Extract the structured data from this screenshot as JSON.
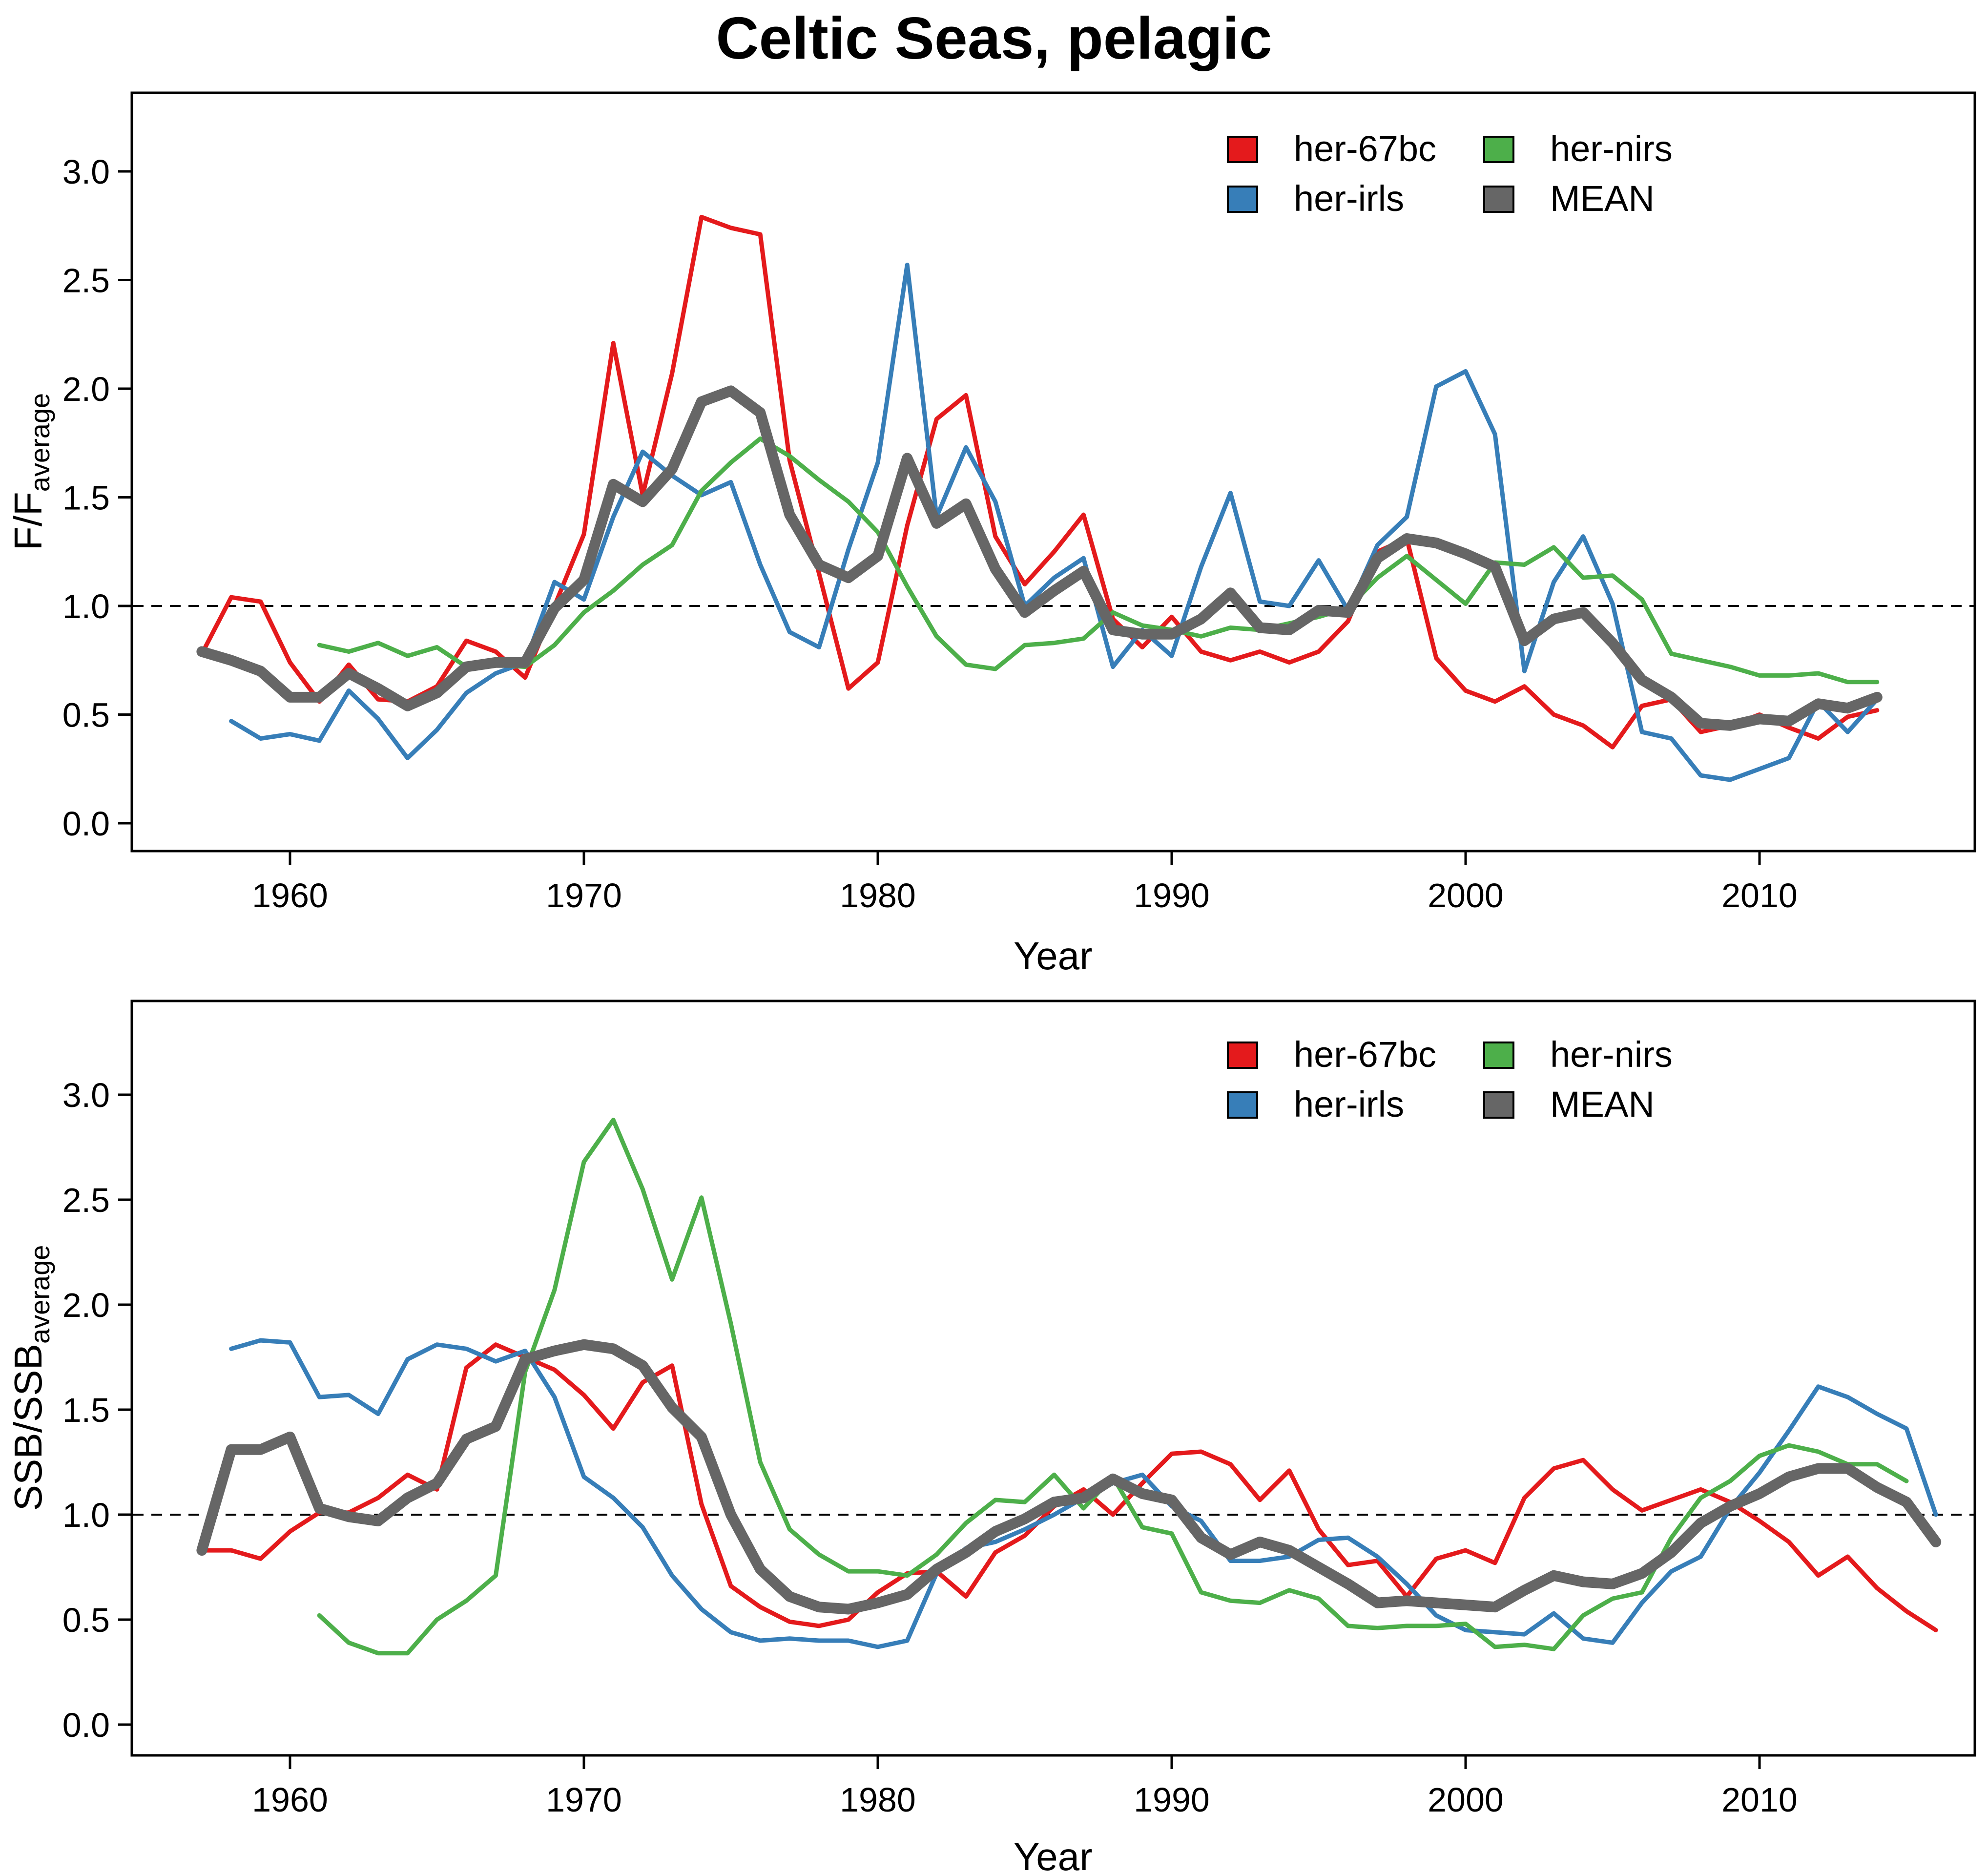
{
  "figure": {
    "title": "Celtic Seas, pelagic"
  },
  "colors": {
    "her-67bc": "#e41a1c",
    "her-irls": "#377eb8",
    "her-nirs": "#4daf4a",
    "MEAN": "#666666"
  },
  "chart_data": [
    {
      "type": "line",
      "panel": "top",
      "xlabel": "Year",
      "ylabel": {
        "main": "F/F",
        "subscript": "average"
      },
      "xlim": [
        1956,
        2016
      ],
      "ylim": [
        -0.12,
        3.3
      ],
      "xticks": [
        1960,
        1970,
        1980,
        1990,
        2000,
        2010
      ],
      "yticks": [
        "0.0",
        "0.5",
        "1.0",
        "1.5",
        "2.0",
        "2.5",
        "3.0"
      ],
      "reference_line": 1.0,
      "grid": false,
      "legend": {
        "position": "top-right",
        "entries": [
          "her-67bc",
          "her-nirs",
          "her-irls",
          "MEAN"
        ]
      },
      "series": [
        {
          "name": "her-67bc",
          "color": "#e41a1c",
          "x_start": 1957,
          "values": [
            0.78,
            1.04,
            1.02,
            0.74,
            0.56,
            0.73,
            0.57,
            0.56,
            0.63,
            0.84,
            0.79,
            0.67,
            1.0,
            1.33,
            2.21,
            1.51,
            2.07,
            2.79,
            2.74,
            2.71,
            1.67,
            1.15,
            0.62,
            0.74,
            1.37,
            1.86,
            1.97,
            1.32,
            1.1,
            1.25,
            1.42,
            0.94,
            0.81,
            0.95,
            0.79,
            0.75,
            0.79,
            0.74,
            0.79,
            0.93,
            1.25,
            1.31,
            0.76,
            0.61,
            0.56,
            0.63,
            0.5,
            0.45,
            0.35,
            0.54,
            0.57,
            0.42,
            0.45,
            0.5,
            0.44,
            0.39,
            0.49,
            0.52
          ]
        },
        {
          "name": "her-irls",
          "color": "#377eb8",
          "x_start": 1957,
          "values": [
            null,
            0.47,
            0.39,
            0.41,
            0.38,
            0.61,
            0.48,
            0.3,
            0.43,
            0.6,
            0.69,
            0.74,
            1.11,
            1.03,
            1.41,
            1.71,
            1.6,
            1.51,
            1.57,
            1.19,
            0.88,
            0.81,
            1.26,
            1.66,
            2.57,
            1.41,
            1.73,
            1.48,
            1.0,
            1.13,
            1.22,
            0.72,
            0.89,
            0.77,
            1.18,
            1.52,
            1.02,
            1.0,
            1.21,
            0.98,
            1.28,
            1.41,
            2.01,
            2.08,
            1.79,
            0.7,
            1.11,
            1.32,
            1.01,
            0.42,
            0.39,
            0.22,
            0.2,
            0.25,
            0.3,
            0.56,
            0.42,
            0.57
          ]
        },
        {
          "name": "her-nirs",
          "color": "#4daf4a",
          "x_start": 1957,
          "values": [
            null,
            null,
            null,
            null,
            0.82,
            0.79,
            0.83,
            0.77,
            0.81,
            0.72,
            0.73,
            0.72,
            0.82,
            0.97,
            1.07,
            1.19,
            1.28,
            1.53,
            1.66,
            1.77,
            1.69,
            1.58,
            1.48,
            1.34,
            1.09,
            0.86,
            0.73,
            0.71,
            0.82,
            0.83,
            0.85,
            0.97,
            0.91,
            0.89,
            0.86,
            0.9,
            0.89,
            0.92,
            0.95,
            0.99,
            1.13,
            1.23,
            1.12,
            1.01,
            1.2,
            1.19,
            1.27,
            1.13,
            1.14,
            1.03,
            0.78,
            0.75,
            0.72,
            0.68,
            0.68,
            0.69,
            0.65,
            0.65
          ]
        },
        {
          "name": "MEAN",
          "color": "#666666",
          "x_start": 1957,
          "values": [
            0.79,
            0.75,
            0.7,
            0.58,
            0.58,
            0.69,
            0.62,
            0.54,
            0.6,
            0.72,
            0.74,
            0.74,
            0.99,
            1.12,
            1.56,
            1.48,
            1.63,
            1.94,
            1.99,
            1.89,
            1.42,
            1.19,
            1.13,
            1.23,
            1.68,
            1.38,
            1.47,
            1.17,
            0.97,
            1.07,
            1.16,
            0.89,
            0.87,
            0.87,
            0.94,
            1.06,
            0.9,
            0.89,
            0.98,
            0.97,
            1.22,
            1.31,
            1.29,
            1.24,
            1.18,
            0.84,
            0.94,
            0.97,
            0.83,
            0.66,
            0.58,
            0.46,
            0.45,
            0.48,
            0.47,
            0.55,
            0.53,
            0.58
          ]
        }
      ]
    },
    {
      "type": "line",
      "panel": "bottom",
      "xlabel": "Year",
      "ylabel": {
        "main": "SSB/SSB",
        "subscript": "average"
      },
      "xlim": [
        1956,
        2016
      ],
      "ylim": [
        -0.12,
        3.3
      ],
      "xticks": [
        1960,
        1970,
        1980,
        1990,
        2000,
        2010
      ],
      "yticks": [
        "0.0",
        "0.5",
        "1.0",
        "1.5",
        "2.0",
        "2.5",
        "3.0"
      ],
      "reference_line": 1.0,
      "grid": false,
      "legend": {
        "position": "top-right",
        "entries": [
          "her-67bc",
          "her-nirs",
          "her-irls",
          "MEAN"
        ]
      },
      "series": [
        {
          "name": "her-67bc",
          "color": "#e41a1c",
          "x_start": 1957,
          "values": [
            0.83,
            0.83,
            0.79,
            0.92,
            1.01,
            1.01,
            1.08,
            1.19,
            1.12,
            1.7,
            1.81,
            1.75,
            1.69,
            1.57,
            1.41,
            1.63,
            1.71,
            1.05,
            0.66,
            0.56,
            0.49,
            0.47,
            0.5,
            0.63,
            0.72,
            0.73,
            0.61,
            0.82,
            0.9,
            1.04,
            1.12,
            1.0,
            1.15,
            1.29,
            1.3,
            1.24,
            1.07,
            1.21,
            0.93,
            0.76,
            0.78,
            0.61,
            0.79,
            0.83,
            0.77,
            1.08,
            1.22,
            1.26,
            1.12,
            1.02,
            1.07,
            1.12,
            1.06,
            0.97,
            0.87,
            0.71,
            0.8,
            0.65,
            0.54,
            0.45
          ]
        },
        {
          "name": "her-irls",
          "color": "#377eb8",
          "x_start": 1957,
          "values": [
            null,
            1.79,
            1.83,
            1.82,
            1.56,
            1.57,
            1.48,
            1.74,
            1.81,
            1.79,
            1.73,
            1.78,
            1.56,
            1.18,
            1.08,
            0.94,
            0.71,
            0.55,
            0.44,
            0.4,
            0.41,
            0.4,
            0.4,
            0.37,
            0.4,
            0.72,
            0.84,
            0.87,
            0.93,
            1.0,
            1.08,
            1.15,
            1.19,
            1.04,
            0.97,
            0.78,
            0.78,
            0.8,
            0.88,
            0.89,
            0.8,
            0.67,
            0.52,
            0.45,
            0.44,
            0.43,
            0.53,
            0.41,
            0.39,
            0.58,
            0.73,
            0.8,
            1.03,
            1.2,
            1.4,
            1.61,
            1.56,
            1.48,
            1.41,
            1.0
          ]
        },
        {
          "name": "her-nirs",
          "color": "#4daf4a",
          "x_start": 1957,
          "values": [
            null,
            null,
            null,
            null,
            0.52,
            0.39,
            0.34,
            0.34,
            0.5,
            0.59,
            0.71,
            1.68,
            2.07,
            2.68,
            2.88,
            2.55,
            2.12,
            2.51,
            1.91,
            1.25,
            0.93,
            0.81,
            0.73,
            0.73,
            0.71,
            0.81,
            0.96,
            1.07,
            1.06,
            1.19,
            1.03,
            1.18,
            0.94,
            0.91,
            0.63,
            0.59,
            0.58,
            0.64,
            0.6,
            0.47,
            0.46,
            0.47,
            0.47,
            0.48,
            0.37,
            0.38,
            0.36,
            0.52,
            0.6,
            0.63,
            0.89,
            1.08,
            1.16,
            1.28,
            1.33,
            1.3,
            1.24,
            1.24,
            1.16
          ]
        },
        {
          "name": "MEAN",
          "color": "#666666",
          "x_start": 1957,
          "values": [
            0.83,
            1.31,
            1.31,
            1.37,
            1.03,
            0.99,
            0.97,
            1.08,
            1.15,
            1.36,
            1.42,
            1.74,
            1.78,
            1.81,
            1.79,
            1.71,
            1.51,
            1.37,
            1.0,
            0.74,
            0.61,
            0.56,
            0.55,
            0.58,
            0.62,
            0.74,
            0.82,
            0.92,
            0.98,
            1.06,
            1.08,
            1.17,
            1.1,
            1.07,
            0.89,
            0.81,
            0.87,
            0.83,
            0.75,
            0.67,
            0.58,
            0.59,
            0.58,
            0.57,
            0.56,
            0.64,
            0.71,
            0.68,
            0.67,
            0.72,
            0.82,
            0.96,
            1.04,
            1.1,
            1.18,
            1.22,
            1.22,
            1.13,
            1.06,
            0.87
          ]
        }
      ]
    }
  ]
}
